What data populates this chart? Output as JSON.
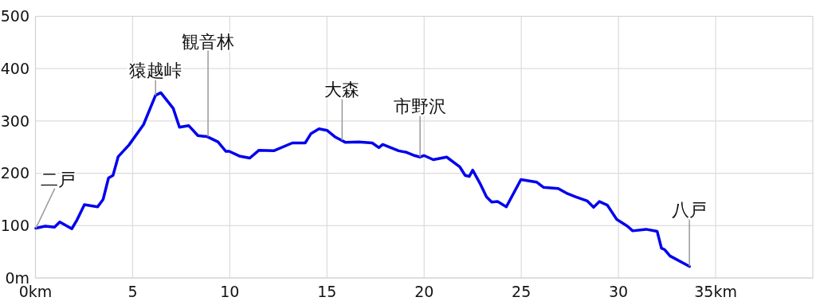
{
  "chart_data": {
    "type": "line",
    "xlim": [
      0,
      40
    ],
    "ylim": [
      0,
      500
    ],
    "xticks": [
      {
        "value": 0,
        "label": "0km"
      },
      5,
      10,
      15,
      20,
      25,
      30,
      {
        "value": 35,
        "label": "35km"
      }
    ],
    "yticks": [
      {
        "value": 0,
        "label": "0m"
      },
      100,
      200,
      300,
      400,
      500
    ],
    "grid": true,
    "marker": "none",
    "line_style": "solid",
    "series": [
      {
        "color": "#0000ee",
        "x": [
          0.02,
          0.5,
          0.98,
          1.25,
          1.87,
          2.14,
          2.52,
          3.2,
          3.48,
          3.76,
          3.99,
          4.26,
          4.81,
          5.56,
          6.18,
          6.45,
          7.09,
          7.41,
          7.89,
          8.36,
          8.84,
          9.39,
          9.8,
          9.97,
          10.49,
          11.03,
          11.5,
          12.26,
          13.22,
          13.88,
          14.18,
          14.59,
          15.0,
          15.44,
          15.96,
          16.64,
          17.33,
          17.67,
          17.87,
          18.69,
          19.1,
          19.5,
          19.79,
          19.99,
          20.47,
          21.16,
          21.84,
          22.11,
          22.32,
          22.5,
          22.87,
          23.21,
          23.48,
          23.78,
          24.23,
          24.98,
          25.8,
          26.15,
          26.9,
          27.38,
          27.79,
          28.4,
          28.72,
          29.02,
          29.43,
          29.91,
          30.46,
          30.73,
          31.42,
          31.99,
          32.21,
          32.38,
          32.65,
          33.65
        ],
        "values": [
          95,
          99,
          97,
          107,
          94,
          111,
          140,
          136,
          150,
          191,
          196,
          232,
          254,
          293,
          349,
          354,
          324,
          288,
          291,
          272,
          270,
          260,
          242,
          242,
          233,
          229,
          244,
          243,
          258,
          258,
          276,
          285,
          282,
          269,
          259,
          260,
          258,
          249,
          255,
          243,
          240,
          234,
          231,
          234,
          226,
          231,
          212,
          196,
          194,
          206,
          181,
          155,
          145,
          146,
          136,
          188,
          183,
          173,
          171,
          161,
          155,
          147,
          135,
          146,
          139,
          112,
          99,
          90,
          93,
          89,
          57,
          54,
          42,
          22
        ]
      }
    ],
    "annotations": [
      {
        "text": "二戸",
        "x": 0.02,
        "y": 95
      },
      {
        "text": "猿越峠",
        "x": 6.18,
        "y": 349
      },
      {
        "text": "観音林",
        "x": 8.88,
        "y": 270
      },
      {
        "text": "大森",
        "x": 15.78,
        "y": 263
      },
      {
        "text": "市野沢",
        "x": 19.79,
        "y": 231
      },
      {
        "text": "八戸",
        "x": 33.65,
        "y": 22
      }
    ]
  }
}
